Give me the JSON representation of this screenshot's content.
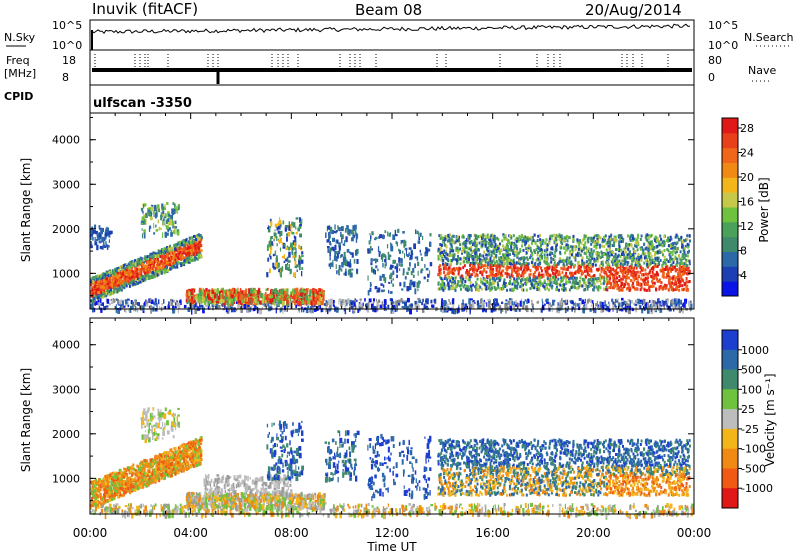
{
  "header": {
    "station": "Inuvik (fitACF)",
    "beam": "Beam 08",
    "date": "20/Aug/2014"
  },
  "strip": {
    "left_labels": {
      "nsky": "N.Sky",
      "freq1": "Freq",
      "freq2": "[MHz]",
      "cpid": "CPID"
    },
    "right_labels": {
      "nsearch": "N.Search",
      "nave": "Nave"
    },
    "nsky_ticks": [
      "10^5",
      "10^0"
    ],
    "freq_ticks": [
      "18",
      "8"
    ],
    "nave_ticks": [
      "80",
      "0"
    ],
    "cpid_text": "ulfscan -3350"
  },
  "chart_data": [
    {
      "type": "heatmap",
      "name": "power",
      "ylabel": "Slant Range [km]",
      "xlabel": "",
      "yticks": [
        "1000",
        "2000",
        "3000",
        "4000"
      ],
      "ylim": [
        200,
        4600
      ],
      "colorbar": {
        "label": "Power [dB]",
        "ticks": [
          "4",
          "8",
          "12",
          "16",
          "20",
          "24",
          "28"
        ],
        "colors": [
          "#0b14e6",
          "#1c3fb3",
          "#2c69a8",
          "#3f8a6d",
          "#4aa25a",
          "#6ec23e",
          "#c6c84a",
          "#f2b51a",
          "#f08a14",
          "#f0661a",
          "#e8401a",
          "#e01818"
        ]
      },
      "echo_regions": [
        {
          "t0": 0.0,
          "t1": 4.4,
          "r0": 500,
          "r1": 1800,
          "level": "high"
        },
        {
          "t0": 4.0,
          "t1": 9.0,
          "r0": 400,
          "r1": 700,
          "level": "high"
        },
        {
          "t0": 13.8,
          "t1": 23.8,
          "r0": 700,
          "r1": 1900,
          "level": "mixed"
        }
      ]
    },
    {
      "type": "heatmap",
      "name": "velocity",
      "ylabel": "Slant Range [km]",
      "xlabel": "Time UT",
      "yticks": [
        "1000",
        "2000",
        "3000",
        "4000"
      ],
      "ylim": [
        200,
        4600
      ],
      "colorbar": {
        "label": "Velocity [m s⁻¹]",
        "ticks": [
          "1000",
          "500",
          "100",
          "25",
          "-25",
          "-100",
          "-500",
          "-1000"
        ],
        "colors": [
          "#1c3fd0",
          "#2c69a8",
          "#3f8a6d",
          "#6ec23e",
          "#bdbdbd",
          "#f2b51a",
          "#f08a14",
          "#f05a14",
          "#e01818"
        ]
      }
    }
  ],
  "xaxis": {
    "ticks": [
      "00:00",
      "04:00",
      "08:00",
      "12:00",
      "16:00",
      "20:00",
      "00:00"
    ]
  }
}
